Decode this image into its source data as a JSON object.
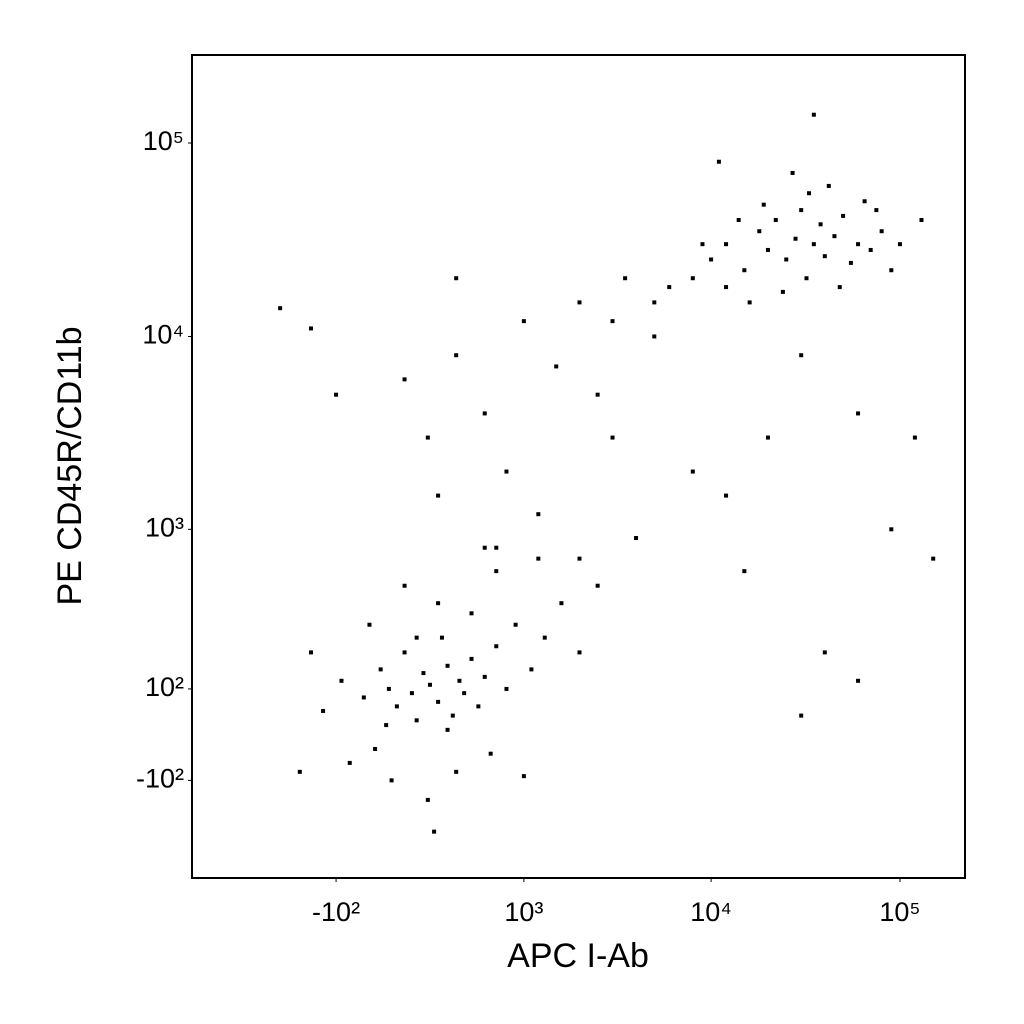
{
  "chart_data": {
    "type": "scatter",
    "x_label": "APC I-Ab",
    "y_label": "PE CD45R/CD11b",
    "scale": "biexponential",
    "color": "#000000",
    "xlim": [
      -1160,
      221000
    ],
    "ylim": [
      -466,
      285000
    ],
    "xticks": [
      {
        "value": -100,
        "label": "-10²"
      },
      {
        "value": 1000,
        "label": "10³"
      },
      {
        "value": 10000,
        "label": "10⁴"
      },
      {
        "value": 100000,
        "label": "10⁵"
      }
    ],
    "yticks": [
      {
        "value": -100,
        "label": "-10²"
      },
      {
        "value": 100,
        "label": "10²"
      },
      {
        "value": 1000,
        "label": "10³"
      },
      {
        "value": 10000,
        "label": "10⁴"
      },
      {
        "value": 100000,
        "label": "10⁵"
      }
    ],
    "x": [
      -150,
      -80,
      0,
      40,
      60,
      90,
      120,
      150,
      180,
      200,
      230,
      260,
      300,
      320,
      350,
      380,
      420,
      450,
      500,
      550,
      600,
      700,
      800,
      900,
      1100,
      1300,
      1600,
      2000,
      -50,
      20,
      100,
      250,
      400,
      150,
      300,
      500,
      700,
      80,
      200,
      350,
      -200,
      -250,
      650,
      1000,
      280,
      600,
      2500,
      1200,
      8000,
      10000,
      12000,
      15000,
      18000,
      20000,
      22000,
      25000,
      28000,
      30000,
      32000,
      35000,
      38000,
      40000,
      45000,
      50000,
      55000,
      60000,
      65000,
      70000,
      80000,
      90000,
      12000,
      16000,
      24000,
      33000,
      42000,
      27000,
      19000,
      14000,
      9000,
      6000,
      48000,
      75000,
      100000,
      130000,
      5000,
      3000,
      35000,
      11000,
      150,
      250,
      400,
      600,
      800,
      1000,
      1500,
      2000,
      2500,
      -100,
      -200,
      300,
      700,
      1200,
      3000,
      4000,
      5000,
      8000,
      12000,
      20000,
      30000,
      60000,
      90000,
      15000,
      40000,
      60000,
      30000,
      2000,
      -350,
      400,
      3500,
      120000,
      150000
    ],
    "values": [
      50,
      120,
      80,
      -30,
      150,
      100,
      60,
      200,
      90,
      30,
      140,
      110,
      70,
      250,
      160,
      40,
      120,
      90,
      180,
      60,
      130,
      220,
      100,
      300,
      150,
      250,
      400,
      200,
      -60,
      300,
      -100,
      -150,
      -80,
      500,
      400,
      350,
      600,
      20,
      250,
      10,
      200,
      -80,
      -40,
      -90,
      -250,
      800,
      500,
      700,
      20000,
      25000,
      30000,
      22000,
      35000,
      28000,
      40000,
      25000,
      32000,
      45000,
      20000,
      30000,
      38000,
      26000,
      33000,
      42000,
      24000,
      30000,
      50000,
      28000,
      35000,
      22000,
      18000,
      15000,
      17000,
      55000,
      60000,
      70000,
      48000,
      40000,
      30000,
      18000,
      18000,
      45000,
      30000,
      40000,
      15000,
      12000,
      140000,
      80000,
      6000,
      3000,
      8000,
      4000,
      2000,
      12000,
      7000,
      15000,
      5000,
      5000,
      11000,
      1500,
      800,
      1200,
      3000,
      900,
      10000,
      2000,
      1500,
      3000,
      8000,
      4000,
      1000,
      600,
      200,
      120,
      40,
      700,
      14000,
      20000,
      20000,
      3000,
      700
    ]
  }
}
